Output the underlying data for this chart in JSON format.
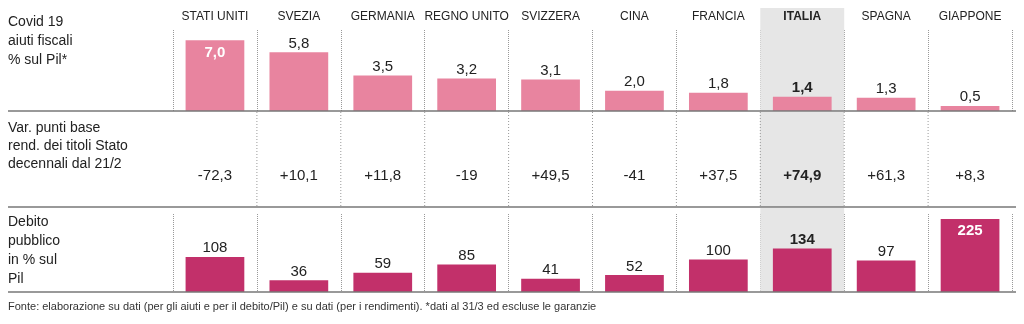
{
  "chart_data": [
    {
      "type": "bar",
      "ylabel": "Covid 19 aiuti fiscali % sul Pil*",
      "categories": [
        "STATI UNITI",
        "SVEZIA",
        "GERMANIA",
        "REGNO UNITO",
        "SVIZZERA",
        "CINA",
        "FRANCIA",
        "ITALIA",
        "SPAGNA",
        "GIAPPONE"
      ],
      "values": [
        7.0,
        5.8,
        3.5,
        3.2,
        3.1,
        2.0,
        1.8,
        1.4,
        1.3,
        0.5
      ],
      "value_labels": [
        "7,0",
        "5,8",
        "3,5",
        "3,2",
        "3,1",
        "2,0",
        "1,8",
        "1,4",
        "1,3",
        "0,5"
      ],
      "color": "#e8849f",
      "ylim": [
        0,
        8
      ],
      "tick_labels": "x",
      "grid": "x",
      "bands": [
        {
          "axis": "x",
          "from": "ITALIA",
          "to": "ITALIA",
          "color": "#e6e6e6"
        }
      ]
    },
    {
      "type": "other",
      "title": "Var. punti base rend. dei titoli Stato decennali dal 21/2",
      "values": [
        -72.3,
        10.1,
        11.8,
        -19,
        49.5,
        -41,
        37.5,
        74.9,
        61.3,
        8.3
      ],
      "value_labels": [
        "-72,3",
        "+10,1",
        "+11,8",
        "-19",
        "+49,5",
        "-41",
        "+37,5",
        "+74,9",
        "+61,3",
        "+8,3"
      ]
    },
    {
      "type": "bar",
      "ylabel": "Debito pubblico in % sul Pil",
      "categories": [
        "STATI UNITI",
        "SVEZIA",
        "GERMANIA",
        "REGNO UNITO",
        "SVIZZERA",
        "CINA",
        "FRANCIA",
        "ITALIA",
        "SPAGNA",
        "GIAPPONE"
      ],
      "values": [
        108,
        36,
        59,
        85,
        41,
        52,
        100,
        134,
        97,
        225
      ],
      "data_labels": true,
      "color": "#c2306a",
      "ylim": [
        0,
        240
      ],
      "tick_labels": false,
      "grid": "x",
      "bands": [
        {
          "axis": "x",
          "from": "ITALIA",
          "to": "ITALIA",
          "color": "#e6e6e6"
        }
      ],
      "annotations": [
        "Fonte: elaborazione su dati (per gli aiuti e per il debito/Pil) e su dati (per i rendimenti). *dati al 31/3 ed escluse le garanzie"
      ]
    }
  ]
}
